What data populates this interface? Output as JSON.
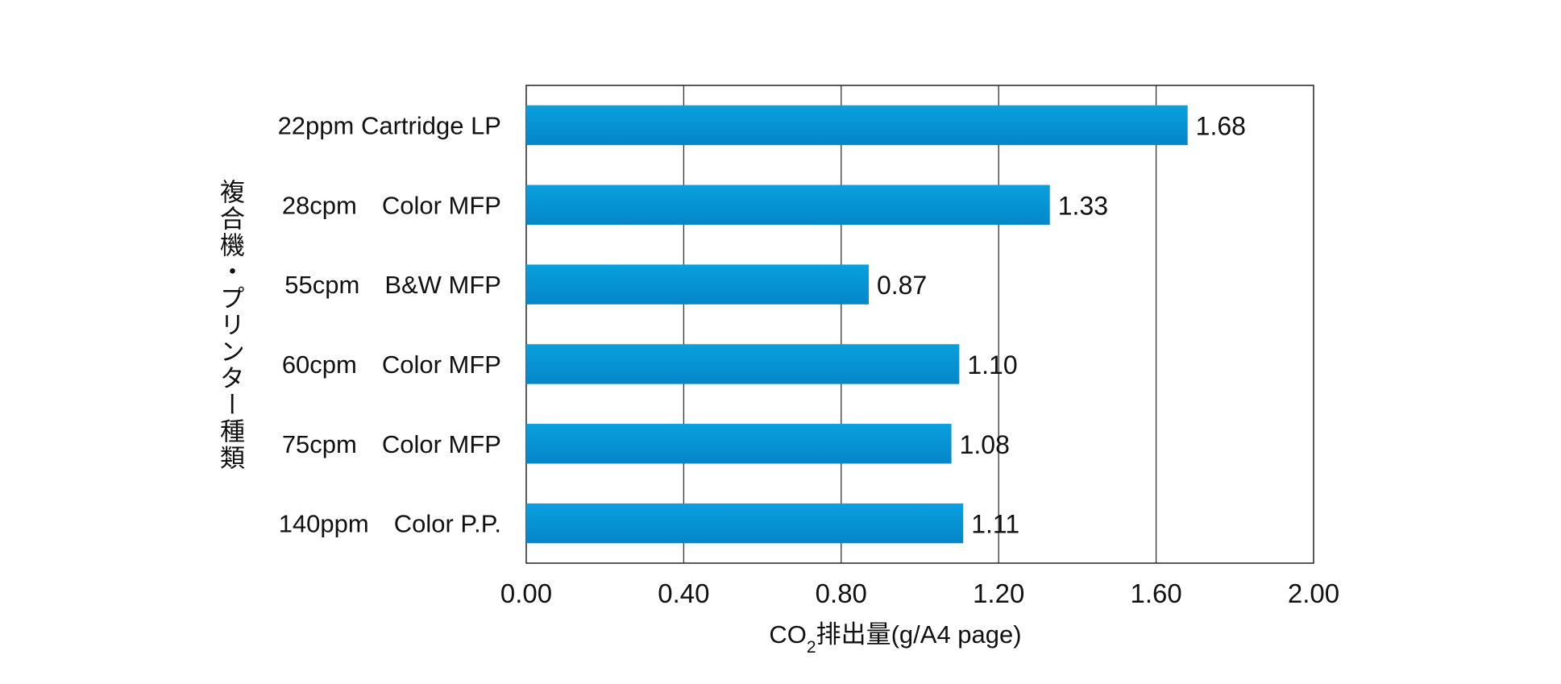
{
  "chart_data": {
    "type": "bar",
    "orientation": "horizontal",
    "categories": [
      "22ppm Cartridge LP",
      "28cpm　Color MFP",
      "55cpm　B&W MFP",
      "60cpm　Color MFP",
      "75cpm　Color MFP",
      "140ppm　Color P.P."
    ],
    "values": [
      1.68,
      1.33,
      0.87,
      1.1,
      1.08,
      1.11
    ],
    "value_labels": [
      "1.68",
      "1.33",
      "0.87",
      "1.10",
      "1.08",
      "1.11"
    ],
    "xlim": [
      0,
      2.0
    ],
    "xticks": [
      0,
      0.4,
      0.8,
      1.2,
      1.6,
      2.0
    ],
    "xtick_labels": [
      "0.00",
      "0.40",
      "0.80",
      "1.20",
      "1.60",
      "2.00"
    ],
    "xlabel": {
      "prefix": "CO",
      "subscript": "2",
      "suffix": "排出量(g/A4 page)"
    },
    "ylabel": "複合機・プリンター種類",
    "grid": "vertical",
    "bar_color": "#0494d4",
    "legend": "none"
  }
}
